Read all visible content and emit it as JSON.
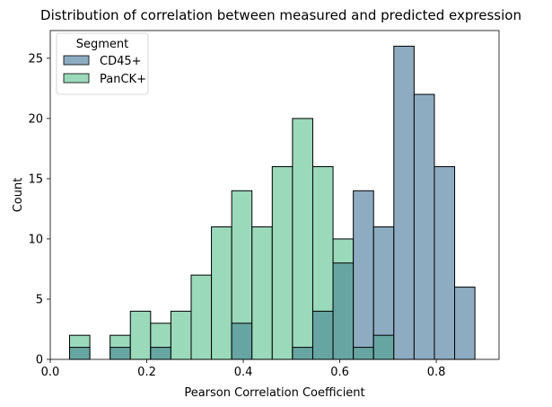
{
  "chart_data": {
    "type": "bar",
    "title": "Distribution of correlation between measured and predicted expression",
    "xlabel": "Pearson Correlation Coefficient",
    "ylabel": "Count",
    "xlim": [
      0.0,
      0.93
    ],
    "ylim": [
      0,
      27.3
    ],
    "xticks": [
      0.0,
      0.2,
      0.4,
      0.6,
      0.8
    ],
    "xtick_labels": [
      "0.0",
      "0.2",
      "0.4",
      "0.6",
      "0.8"
    ],
    "yticks": [
      0,
      5,
      10,
      15,
      20,
      25
    ],
    "ytick_labels": [
      "0",
      "5",
      "10",
      "15",
      "20",
      "25"
    ],
    "bin_edges": [
      0.04,
      0.082,
      0.124,
      0.166,
      0.208,
      0.25,
      0.292,
      0.334,
      0.376,
      0.418,
      0.46,
      0.502,
      0.544,
      0.586,
      0.628,
      0.67,
      0.712,
      0.754,
      0.796,
      0.838,
      0.88
    ],
    "grid": false,
    "legend": {
      "title": "Segment",
      "position": "top-left"
    },
    "series": [
      {
        "name": "CD45+",
        "color": "#8eacc1",
        "values": [
          1,
          0,
          1,
          0,
          1,
          0,
          0,
          0,
          3,
          0,
          0,
          1,
          4,
          8,
          14,
          11,
          26,
          22,
          16,
          6
        ]
      },
      {
        "name": "PanCK+",
        "color": "#9bd9bb",
        "values": [
          2,
          0,
          2,
          4,
          3,
          4,
          7,
          11,
          14,
          11,
          16,
          20,
          16,
          10,
          1,
          2,
          0,
          0,
          0,
          0
        ]
      }
    ],
    "overlap_color": "#67a5a3"
  }
}
